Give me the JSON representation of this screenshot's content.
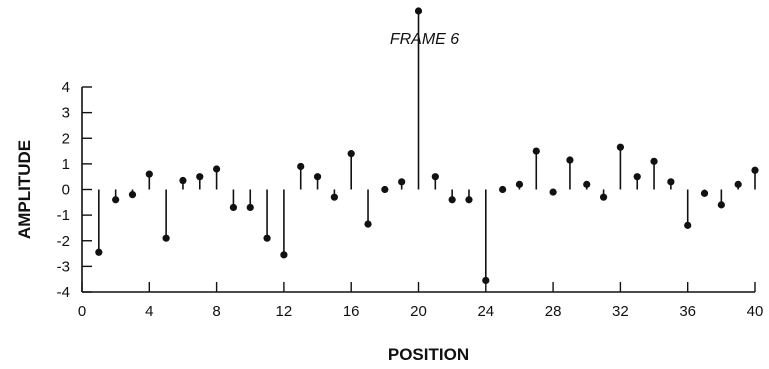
{
  "chart_data": {
    "type": "stem",
    "xlabel": "POSITION",
    "ylabel": "AMPLITUDE",
    "xlim": [
      0,
      40
    ],
    "ylim": [
      -4,
      4
    ],
    "xticks": [
      0,
      4,
      8,
      12,
      16,
      20,
      24,
      28,
      32,
      36,
      40
    ],
    "yticks": [
      4,
      3,
      2,
      1,
      0,
      -1,
      -2,
      -3,
      -4
    ],
    "grid": false,
    "annotations": [
      {
        "text": "FRAME 6",
        "x": 20
      }
    ],
    "x": [
      1,
      2,
      3,
      4,
      5,
      6,
      7,
      8,
      9,
      10,
      11,
      12,
      13,
      14,
      15,
      16,
      17,
      18,
      19,
      20,
      21,
      22,
      23,
      24,
      25,
      26,
      27,
      28,
      29,
      30,
      31,
      32,
      33,
      34,
      35,
      36,
      37,
      38,
      39,
      40
    ],
    "values": [
      -2.45,
      -0.4,
      -0.2,
      0.6,
      -1.9,
      0.35,
      0.5,
      0.8,
      -0.7,
      -0.7,
      -1.9,
      -2.55,
      0.9,
      0.5,
      -0.3,
      1.4,
      -1.35,
      0.0,
      0.3,
      7.0,
      0.5,
      -0.4,
      -0.4,
      -3.55,
      0.0,
      0.2,
      1.5,
      -0.1,
      1.15,
      0.2,
      -0.3,
      1.65,
      0.5,
      1.1,
      0.3,
      -1.4,
      -0.15,
      -0.6,
      0.2,
      0.75
    ]
  }
}
